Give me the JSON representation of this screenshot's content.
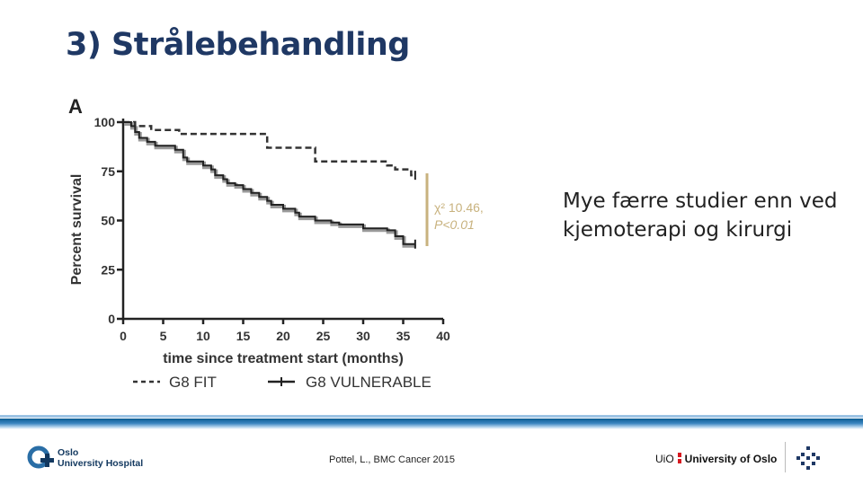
{
  "slide": {
    "title": "3) Strålebehandling",
    "side_text": "Mye færre studier enn ved kjemoterapi og kirurgi",
    "citation": "Pottel, L., BMC Cancer 2015"
  },
  "footer": {
    "left_logo_line1": "Oslo",
    "left_logo_line2": "University Hospital",
    "right_logo_abbr": "UiO",
    "right_logo_name": "University of Oslo"
  },
  "colors": {
    "title": "#1f3864",
    "accent_bracket": "#c8b27e",
    "stat_text": "#c8b27e",
    "fit_line": "#333333",
    "vulnerable_line": "#222222",
    "vulnerable_shadow": "#9a9a9a"
  },
  "chart_data": {
    "type": "line",
    "panel_label": "A",
    "xlabel": "time since treatment start (months)",
    "ylabel": "Percent survival",
    "xlim": [
      0,
      40
    ],
    "ylim": [
      0,
      100
    ],
    "x_ticks": [
      0,
      5,
      10,
      15,
      20,
      25,
      30,
      35,
      40
    ],
    "y_ticks": [
      0,
      25,
      50,
      75,
      100
    ],
    "annotation": {
      "line1": "χ² 10.46,",
      "line2": "P<0.01"
    },
    "legend": [
      {
        "name": "G8 FIT",
        "style": "dashed"
      },
      {
        "name": "G8 VULNERABLE",
        "style": "solid"
      }
    ],
    "series": [
      {
        "name": "G8 FIT",
        "style": "dashed",
        "points": [
          [
            0,
            100
          ],
          [
            1.5,
            100
          ],
          [
            1.5,
            98
          ],
          [
            3.5,
            98
          ],
          [
            3.5,
            96
          ],
          [
            7,
            96
          ],
          [
            7,
            94
          ],
          [
            18,
            94
          ],
          [
            18,
            87
          ],
          [
            24,
            87
          ],
          [
            24,
            80
          ],
          [
            33,
            80
          ],
          [
            33,
            78
          ],
          [
            34,
            78
          ],
          [
            34,
            76
          ],
          [
            36,
            76
          ],
          [
            36,
            73
          ],
          [
            36.5,
            73
          ]
        ],
        "censor_x": [
          36.5
        ]
      },
      {
        "name": "G8 VULNERABLE",
        "style": "solid",
        "points": [
          [
            0,
            100
          ],
          [
            1,
            100
          ],
          [
            1,
            98
          ],
          [
            1.5,
            98
          ],
          [
            1.5,
            95
          ],
          [
            2,
            95
          ],
          [
            2,
            92
          ],
          [
            3,
            92
          ],
          [
            3,
            90
          ],
          [
            4,
            90
          ],
          [
            4,
            88
          ],
          [
            6.5,
            88
          ],
          [
            6.5,
            86
          ],
          [
            7.5,
            86
          ],
          [
            7.5,
            82
          ],
          [
            8,
            82
          ],
          [
            8,
            80
          ],
          [
            10,
            80
          ],
          [
            10,
            78
          ],
          [
            11,
            78
          ],
          [
            11,
            76
          ],
          [
            11.5,
            76
          ],
          [
            11.5,
            73
          ],
          [
            12.5,
            73
          ],
          [
            12.5,
            71
          ],
          [
            13,
            71
          ],
          [
            13,
            69
          ],
          [
            14,
            69
          ],
          [
            14,
            68
          ],
          [
            15,
            68
          ],
          [
            15,
            66
          ],
          [
            16,
            66
          ],
          [
            16,
            64
          ],
          [
            17,
            64
          ],
          [
            17,
            62
          ],
          [
            18,
            62
          ],
          [
            18,
            60
          ],
          [
            18.5,
            60
          ],
          [
            18.5,
            58
          ],
          [
            20,
            58
          ],
          [
            20,
            56
          ],
          [
            21.5,
            56
          ],
          [
            21.5,
            54
          ],
          [
            22,
            54
          ],
          [
            22,
            52
          ],
          [
            24,
            52
          ],
          [
            24,
            50
          ],
          [
            26,
            50
          ],
          [
            26,
            49
          ],
          [
            27,
            49
          ],
          [
            27,
            48
          ],
          [
            30,
            48
          ],
          [
            30,
            46
          ],
          [
            33,
            46
          ],
          [
            33,
            45
          ],
          [
            34,
            45
          ],
          [
            34,
            42
          ],
          [
            35,
            42
          ],
          [
            35,
            38
          ],
          [
            36.5,
            38
          ]
        ],
        "censor_x": [
          36.5
        ]
      }
    ]
  }
}
